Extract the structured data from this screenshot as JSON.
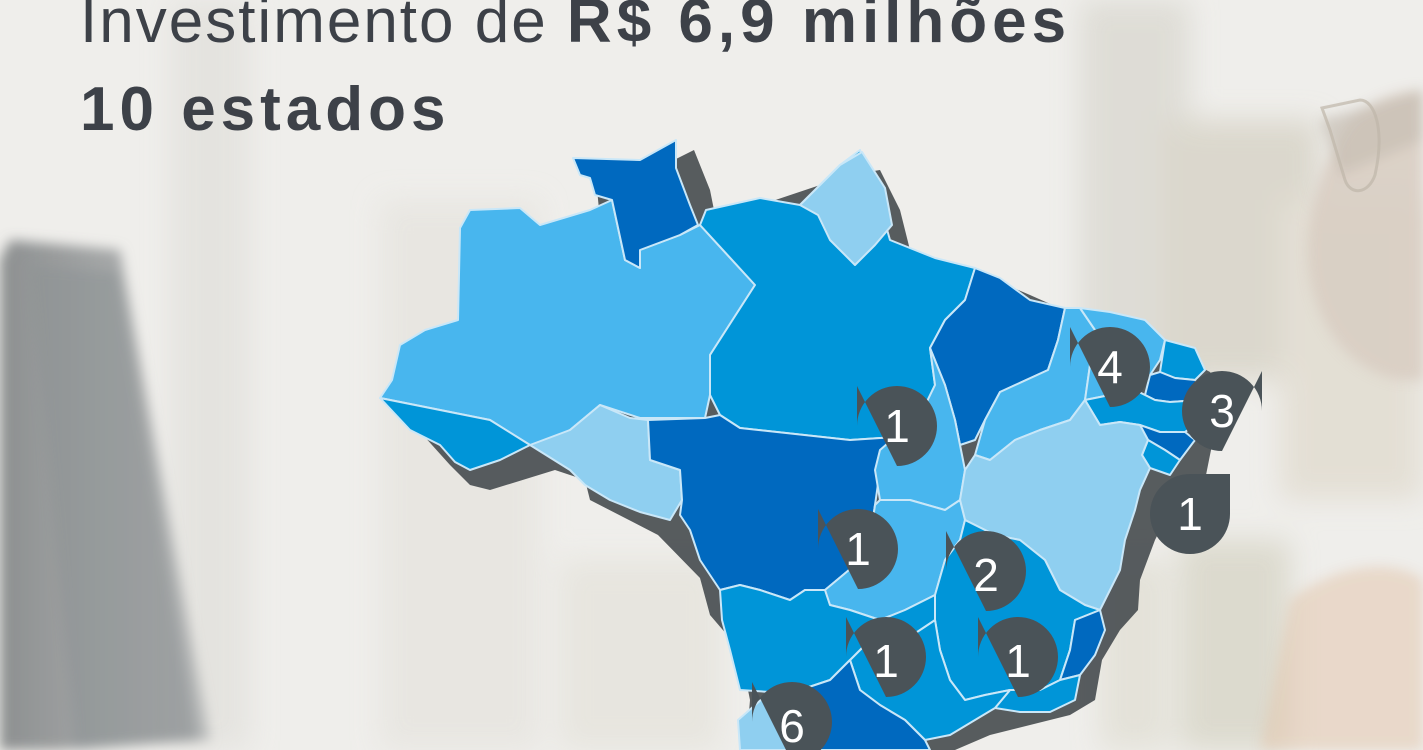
{
  "headline": {
    "prefix": "Investimento de ",
    "amount": "R$ 6,9 milhões",
    "line2": "10 estados"
  },
  "colors": {
    "text": "#3d4148",
    "marker": "#4a5358",
    "state_dark": "#0069bf",
    "state_mid": "#0095d8",
    "state_light": "#48b6ee",
    "state_pale": "#8fcff0"
  },
  "markers": [
    {
      "id": "ce",
      "count": "4"
    },
    {
      "id": "rn",
      "count": "3"
    },
    {
      "id": "se",
      "count": "1"
    },
    {
      "id": "to",
      "count": "1"
    },
    {
      "id": "go",
      "count": "1"
    },
    {
      "id": "mg",
      "count": "2"
    },
    {
      "id": "sp",
      "count": "1"
    },
    {
      "id": "rj",
      "count": "1"
    },
    {
      "id": "pr",
      "count": "6"
    }
  ]
}
